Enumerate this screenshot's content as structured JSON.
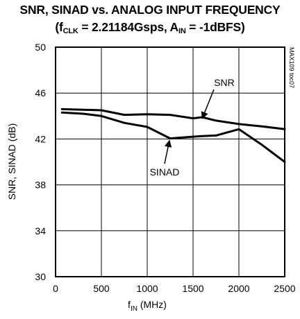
{
  "chart_data": {
    "type": "line",
    "title": "SNR, SINAD vs. ANALOG INPUT FREQUENCY",
    "subtitle": {
      "open": "(f",
      "clk_sub": "CLK",
      "mid": " = 2.21184Gsps, A",
      "in_sub": "IN",
      "close": " = -1dBFS)"
    },
    "xlabel": {
      "main": "f",
      "sub": "IN",
      "unit": " (MHz)"
    },
    "ylabel": "SNR, SINAD (dB)",
    "xlim": [
      0,
      2500
    ],
    "ylim": [
      30,
      50
    ],
    "xticks": [
      0,
      500,
      1000,
      1500,
      2000,
      2500
    ],
    "yticks": [
      30,
      34,
      38,
      42,
      46,
      50
    ],
    "grid": true,
    "watermark": "MAX109 toc07",
    "series": [
      {
        "name": "SNR",
        "x": [
          70,
          300,
          500,
          750,
          1000,
          1250,
          1500,
          1600,
          1750,
          2000,
          2250,
          2500
        ],
        "y": [
          44.6,
          44.55,
          44.5,
          44.1,
          44.15,
          44.1,
          43.8,
          43.9,
          43.6,
          43.3,
          43.1,
          42.85
        ]
      },
      {
        "name": "SINAD",
        "x": [
          70,
          300,
          500,
          750,
          1000,
          1250,
          1500,
          1600,
          1750,
          2000,
          2250,
          2500
        ],
        "y": [
          44.3,
          44.2,
          44.0,
          43.4,
          43.05,
          42.05,
          42.2,
          42.25,
          42.3,
          42.85,
          41.5,
          40.0
        ]
      }
    ],
    "annotations": [
      {
        "text": "SNR",
        "series": "SNR"
      },
      {
        "text": "SINAD",
        "series": "SINAD"
      }
    ]
  }
}
